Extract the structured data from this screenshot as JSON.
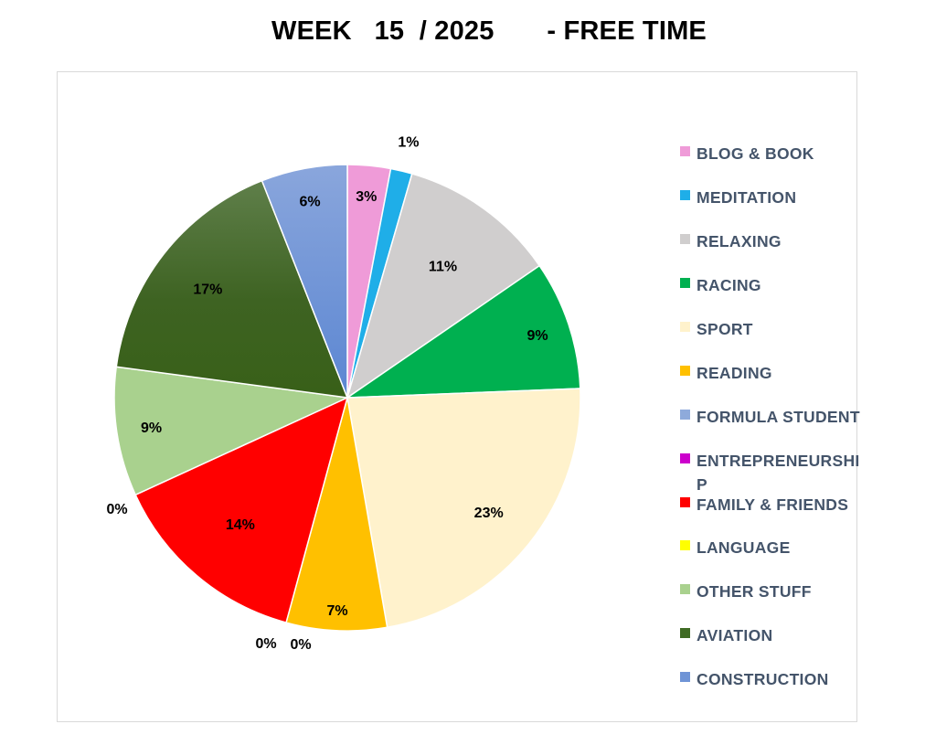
{
  "title": "WEEK   15  / 2025       - FREE TIME",
  "chart_data": {
    "type": "pie",
    "title": "WEEK   15  / 2025       - FREE TIME",
    "legend_position": "right",
    "start_angle_deg": 0,
    "direction": "clockwise",
    "slices": [
      {
        "name": "BLOG & BOOK",
        "value": 3,
        "label": "3%",
        "color": "#ef9bd8"
      },
      {
        "name": "MEDITATION",
        "value": 1.5,
        "label": "1%",
        "color": "#1faee8"
      },
      {
        "name": "RELAXING",
        "value": 11,
        "label": "11%",
        "color": "#d0cece"
      },
      {
        "name": "RACING",
        "value": 9,
        "label": "9%",
        "color": "#00b050"
      },
      {
        "name": "SPORT",
        "value": 23,
        "label": "23%",
        "color": "#fff2cc"
      },
      {
        "name": "READING",
        "value": 7,
        "label": "7%",
        "color": "#ffc000"
      },
      {
        "name": "FORMULA STUDENT",
        "value": 0,
        "label": "0%",
        "color": "#8eaadb"
      },
      {
        "name": "ENTREPRENEURSHIP",
        "value": 0,
        "label": "0%",
        "color": "#cc00cc"
      },
      {
        "name": "FAMILY & FRIENDS",
        "value": 14,
        "label": "14%",
        "color": "#ff0000"
      },
      {
        "name": "LANGUAGE",
        "value": 0,
        "label": "0%",
        "color": "#ffff00"
      },
      {
        "name": "OTHER STUFF",
        "value": 9,
        "label": "9%",
        "color": "#a9d18e"
      },
      {
        "name": "AVIATION",
        "value": 17,
        "label": "17%",
        "color": "#3f6b24"
      },
      {
        "name": "CONSTRUCTION",
        "value": 6,
        "label": "6%",
        "color": "#6f94d6"
      }
    ]
  },
  "legend": [
    {
      "label": "BLOG & BOOK",
      "color": "#ef9bd8"
    },
    {
      "label": "MEDITATION",
      "color": "#1faee8"
    },
    {
      "label": "RELAXING",
      "color": "#d0cece"
    },
    {
      "label": "RACING",
      "color": "#00b050"
    },
    {
      "label": "SPORT",
      "color": "#fff2cc"
    },
    {
      "label": "READING",
      "color": "#ffc000"
    },
    {
      "label": "FORMULA STUDENT",
      "color": "#8eaadb"
    },
    {
      "label": "ENTREPRENEURSHIP",
      "color": "#cc00cc"
    },
    {
      "label": "FAMILY & FRIENDS",
      "color": "#ff0000"
    },
    {
      "label": "LANGUAGE",
      "color": "#ffff00"
    },
    {
      "label": "OTHER STUFF",
      "color": "#a9d18e"
    },
    {
      "label": "AVIATION",
      "color": "#3f6b24"
    },
    {
      "label": "CONSTRUCTION",
      "color": "#6f94d6"
    }
  ]
}
